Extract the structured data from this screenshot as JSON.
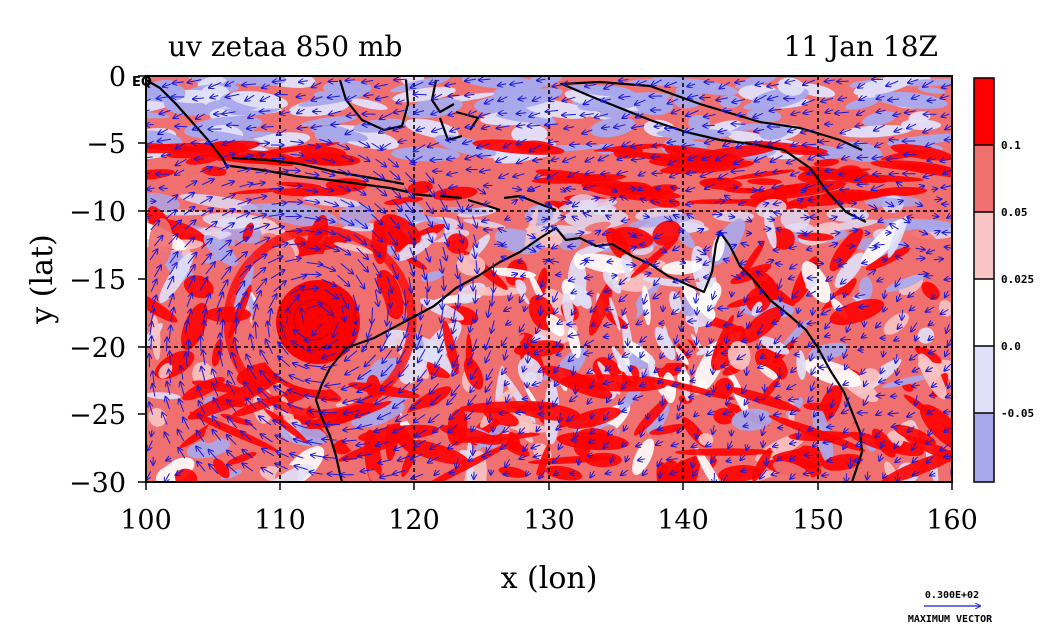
{
  "title_left": "uv zetaa 850 mb",
  "title_right": "11 Jan 18Z",
  "x_axis_label": "x (lon)",
  "y_axis_label": "y (lat)",
  "equator_label": "EQ",
  "x_ticks": [
    "100",
    "110",
    "120",
    "130",
    "140",
    "150",
    "160"
  ],
  "y_ticks": [
    "0",
    "−5",
    "−10",
    "−15",
    "−20",
    "−25",
    "−30"
  ],
  "colorbar": {
    "labels": [
      "0.1",
      "0.05",
      "0.025",
      "0.0",
      "-0.05"
    ],
    "colors": [
      "#ff0000",
      "#f07070",
      "#f8c4c4",
      "#ffffff",
      "#e0e0fa",
      "#a8a8ec"
    ]
  },
  "vector_key": {
    "value": "0.300E+02",
    "label": "MAXIMUM VECTOR"
  },
  "map": {
    "lon_range": [
      100,
      160
    ],
    "lat_range": [
      -30,
      0
    ],
    "cyclone_center": {
      "lon": 112.5,
      "lat": -18.0
    },
    "vector_color": "#1a1ad8",
    "coast_color": "#000000"
  }
}
